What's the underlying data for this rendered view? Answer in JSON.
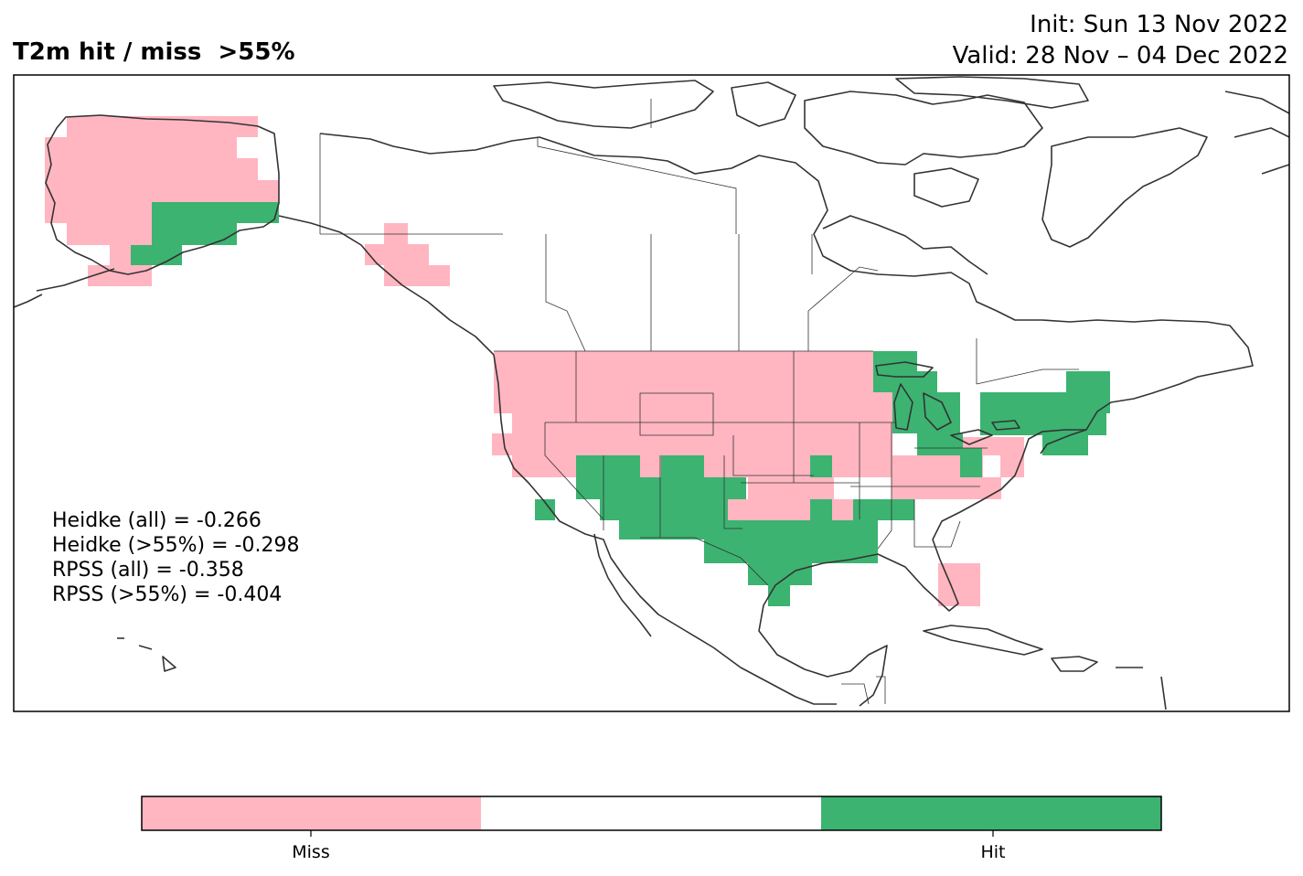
{
  "title": "T2m hit / miss  >55%",
  "init_line": "Init: Sun 13 Nov 2022",
  "valid_line": "Valid: 28 Nov – 04 Dec 2022",
  "scores": {
    "heidke_all": "Heidke (all) = -0.266",
    "heidke_55": "Heidke (>55%) = -0.298",
    "rpss_all": "RPSS (all) = -0.358",
    "rpss_55": "RPSS (>55%) = -0.404"
  },
  "colors": {
    "miss": "#FFB6C1",
    "neutral": "#FFFFFF",
    "hit": "#3CB371",
    "coast": "#333333"
  },
  "colorbar": {
    "labels": [
      "Miss",
      "Hit"
    ]
  }
}
